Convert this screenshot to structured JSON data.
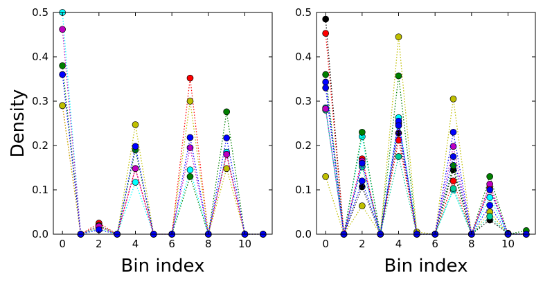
{
  "chart_data": [
    {
      "type": "line",
      "markers": true,
      "line_style": "dotted",
      "xlabel": "Bin index",
      "ylabel": "Density",
      "xlim": [
        -0.5,
        11.5
      ],
      "ylim": [
        0,
        0.5
      ],
      "xticks": [
        "0",
        "2",
        "4",
        "6",
        "8",
        "10"
      ],
      "yticks": [
        "0.0",
        "0.1",
        "0.2",
        "0.3",
        "0.4",
        "0.5"
      ],
      "x": [
        0,
        1,
        2,
        3,
        4,
        5,
        6,
        7,
        8,
        9,
        10,
        11
      ],
      "grid": false,
      "series": [
        {
          "color": "#00ffff",
          "values": [
            0.5,
            0.0,
            0.013,
            0.0,
            0.117,
            0.0,
            0.0,
            0.145,
            0.0,
            0.185,
            0.0,
            0.0
          ]
        },
        {
          "color": "#ff0000",
          "values": [
            0.29,
            0.0,
            0.025,
            0.0,
            0.148,
            0.0,
            0.0,
            0.352,
            0.0,
            0.18,
            0.0,
            0.0
          ]
        },
        {
          "color": "#bfbf00",
          "values": [
            0.29,
            0.0,
            0.015,
            0.0,
            0.247,
            0.0,
            0.0,
            0.3,
            0.0,
            0.148,
            0.0,
            0.0
          ]
        },
        {
          "color": "#008000",
          "values": [
            0.38,
            0.0,
            0.02,
            0.0,
            0.19,
            0.0,
            0.0,
            0.13,
            0.0,
            0.276,
            0.0,
            0.0
          ]
        },
        {
          "color": "#bf00bf",
          "values": [
            0.462,
            0.0,
            0.018,
            0.0,
            0.148,
            0.0,
            0.0,
            0.195,
            0.0,
            0.18,
            0.0,
            0.0
          ]
        },
        {
          "color": "#0000ff",
          "values": [
            0.36,
            0.0,
            0.01,
            0.0,
            0.198,
            0.0,
            0.0,
            0.218,
            0.0,
            0.217,
            0.0,
            0.0
          ]
        }
      ]
    },
    {
      "type": "line",
      "markers": true,
      "line_style": "dotted",
      "xlabel": "Bin index",
      "ylabel": "",
      "xlim": [
        -0.5,
        11.5
      ],
      "ylim": [
        0,
        0.5
      ],
      "xticks": [
        "0",
        "2",
        "4",
        "6",
        "8",
        "10"
      ],
      "yticks": [
        "0.0",
        "0.1",
        "0.2",
        "0.3",
        "0.4",
        "0.5"
      ],
      "x": [
        0,
        1,
        2,
        3,
        4,
        5,
        6,
        7,
        8,
        9,
        10,
        11
      ],
      "grid": false,
      "series": [
        {
          "color": "#bfbf00",
          "values": [
            0.13,
            0.0,
            0.064,
            0.0,
            0.445,
            0.005,
            0.0,
            0.305,
            0.0,
            0.05,
            0.0,
            0.0
          ]
        },
        {
          "color": "#00ffff",
          "values": [
            0.285,
            0.0,
            0.22,
            0.0,
            0.263,
            0.0,
            0.0,
            0.1,
            0.0,
            0.083,
            0.0,
            0.0
          ]
        },
        {
          "color": "#000000",
          "values": [
            0.485,
            0.0,
            0.107,
            0.0,
            0.228,
            0.0,
            0.0,
            0.145,
            0.0,
            0.032,
            0.002,
            0.0
          ]
        },
        {
          "color": "#ff0000",
          "values": [
            0.453,
            0.0,
            0.17,
            0.0,
            0.212,
            0.0,
            0.0,
            0.12,
            0.0,
            0.105,
            0.0,
            0.0
          ]
        },
        {
          "color": "#008000",
          "values": [
            0.36,
            0.0,
            0.23,
            0.0,
            0.357,
            0.0,
            0.0,
            0.155,
            0.0,
            0.13,
            0.0,
            0.008
          ]
        },
        {
          "color": "#00cc99",
          "values": [
            0.28,
            0.0,
            0.152,
            0.0,
            0.175,
            0.0,
            0.0,
            0.103,
            0.0,
            0.04,
            0.0,
            0.0
          ]
        },
        {
          "color": "#bf00bf",
          "values": [
            0.283,
            0.0,
            0.165,
            0.0,
            0.25,
            0.0,
            0.0,
            0.198,
            0.0,
            0.113,
            0.0,
            0.0
          ]
        },
        {
          "color": "#0000ff",
          "values": [
            0.343,
            0.0,
            0.12,
            0.0,
            0.255,
            0.0,
            0.0,
            0.23,
            0.0,
            0.065,
            0.0,
            0.0
          ]
        },
        {
          "color": "#0000ee",
          "values": [
            0.33,
            0.0,
            0.16,
            0.0,
            0.245,
            0.0,
            0.0,
            0.175,
            0.0,
            0.1,
            0.0,
            0.0
          ]
        }
      ]
    }
  ]
}
